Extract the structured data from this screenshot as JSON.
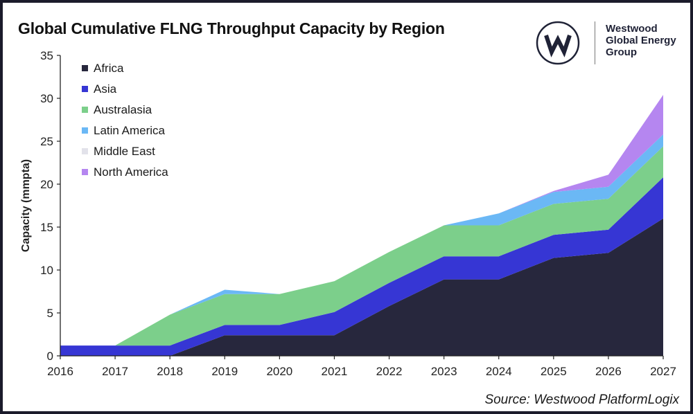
{
  "title": "Global Cumulative FLNG Throughput Capacity by Region",
  "logo": {
    "icon": "westwood-w-logo",
    "lines": [
      "Westwood",
      "Global Energy",
      "Group"
    ]
  },
  "source": "Source: Westwood PlatformLogix",
  "chart_data": {
    "type": "area",
    "stacked": true,
    "title": "Global Cumulative FLNG Throughput Capacity by Region",
    "xlabel": "",
    "ylabel": "Capacity (mmpta)",
    "x": [
      "2016",
      "2017",
      "2018",
      "2019",
      "2020",
      "2021",
      "2022",
      "2023",
      "2024",
      "2025",
      "2026",
      "2027"
    ],
    "ylim": [
      0,
      35
    ],
    "yticks": [
      0,
      5,
      10,
      15,
      20,
      25,
      30,
      35
    ],
    "grid": false,
    "legend_position": "top-left",
    "series": [
      {
        "name": "Africa",
        "color": "#27273d",
        "values": [
          0,
          0,
          0,
          2.4,
          2.4,
          2.4,
          5.8,
          8.9,
          8.9,
          11.4,
          12.0,
          16.0
        ]
      },
      {
        "name": "Asia",
        "color": "#3636d4",
        "values": [
          1.2,
          1.2,
          1.2,
          1.2,
          1.2,
          2.7,
          2.7,
          2.7,
          2.7,
          2.7,
          2.7,
          4.8
        ]
      },
      {
        "name": "Australasia",
        "color": "#7ccf8b",
        "values": [
          0,
          0,
          3.6,
          3.6,
          3.6,
          3.6,
          3.6,
          3.6,
          3.6,
          3.6,
          3.6,
          3.6
        ]
      },
      {
        "name": "Latin America",
        "color": "#6bb8f5",
        "values": [
          0,
          0,
          0,
          0.5,
          0,
          0,
          0,
          0,
          1.4,
          1.4,
          1.4,
          1.4
        ]
      },
      {
        "name": "Middle East",
        "color": "#e2e2ea",
        "values": [
          0,
          0,
          0,
          0,
          0,
          0,
          0,
          0,
          0,
          0,
          0,
          0
        ]
      },
      {
        "name": "North America",
        "color": "#b586f0",
        "values": [
          0,
          0,
          0,
          0,
          0,
          0,
          0,
          0,
          0,
          0.1,
          1.4,
          4.6
        ]
      }
    ]
  }
}
